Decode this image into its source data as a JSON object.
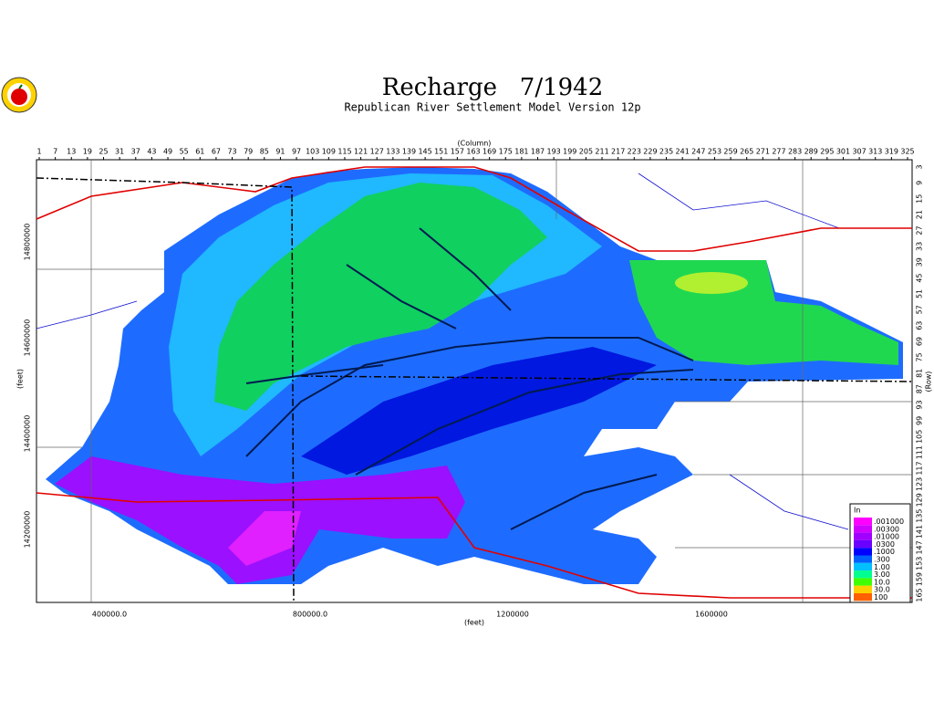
{
  "header": {
    "title": "Recharge   7/1942",
    "subtitle": "Republican River Settlement Model Version 12p"
  },
  "axes": {
    "column_label": "(Column)",
    "row_label": "(Row)",
    "x_label": "(feet)",
    "y_label": "(feet)",
    "columns": [
      "1",
      "7",
      "13",
      "19",
      "25",
      "31",
      "37",
      "43",
      "49",
      "55",
      "61",
      "67",
      "73",
      "79",
      "85",
      "91",
      "97",
      "103",
      "109",
      "115",
      "121",
      "127",
      "133",
      "139",
      "145",
      "151",
      "157",
      "163",
      "169",
      "175",
      "181",
      "187",
      "193",
      "199",
      "205",
      "211",
      "217",
      "223",
      "229",
      "235",
      "241",
      "247",
      "253",
      "259",
      "265",
      "271",
      "277",
      "283",
      "289",
      "295",
      "301",
      "307",
      "313",
      "319",
      "325"
    ],
    "rows": [
      "3",
      "9",
      "15",
      "21",
      "27",
      "33",
      "39",
      "45",
      "51",
      "57",
      "63",
      "69",
      "75",
      "81",
      "87",
      "93",
      "99",
      "105",
      "111",
      "117",
      "123",
      "129",
      "135",
      "141",
      "147",
      "153",
      "159",
      "165"
    ],
    "x_ticks": [
      "400000.0",
      "800000.0",
      "1200000",
      "1600000"
    ],
    "y_ticks": [
      "14800000",
      "14600000",
      "14400000",
      "14200000"
    ]
  },
  "legend": {
    "unit": "In",
    "items": [
      {
        "label": ".001000",
        "color": "#ff00ff"
      },
      {
        "label": ".00300",
        "color": "#d000ff"
      },
      {
        "label": ".01000",
        "color": "#a000ff"
      },
      {
        "label": ".0300",
        "color": "#6a00ff"
      },
      {
        "label": ".1000",
        "color": "#0000ff"
      },
      {
        "label": ".300",
        "color": "#0060ff"
      },
      {
        "label": "1.00",
        "color": "#00c0ff"
      },
      {
        "label": "3.00",
        "color": "#00ff90"
      },
      {
        "label": "10.0",
        "color": "#40ff00"
      },
      {
        "label": "30.0",
        "color": "#ffd000"
      },
      {
        "label": "100",
        "color": "#ff6000"
      }
    ]
  }
}
